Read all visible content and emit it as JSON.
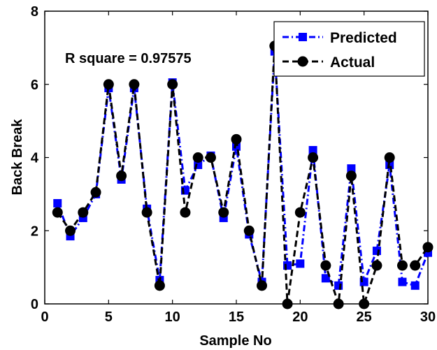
{
  "chart_data": {
    "type": "line",
    "xlabel": "Sample No",
    "ylabel": "Back Break",
    "xlim": [
      0,
      30
    ],
    "ylim": [
      0,
      8
    ],
    "xticks": [
      0,
      5,
      10,
      15,
      20,
      25,
      30
    ],
    "yticks": [
      0,
      2,
      4,
      6,
      8
    ],
    "grid": false,
    "legend_position": "top-right",
    "annotation": "R square = 0.97575",
    "x": [
      1,
      2,
      3,
      4,
      5,
      6,
      7,
      8,
      9,
      10,
      11,
      12,
      13,
      14,
      15,
      16,
      17,
      18,
      19,
      20,
      21,
      22,
      23,
      24,
      25,
      26,
      27,
      28,
      29,
      30
    ],
    "series": [
      {
        "name": "Predicted",
        "color": "#0000ff",
        "marker": "square",
        "line_style": "dash-dot",
        "values": [
          2.75,
          1.85,
          2.35,
          3.0,
          5.9,
          3.4,
          5.9,
          2.6,
          0.65,
          6.05,
          3.1,
          3.8,
          4.05,
          2.35,
          4.3,
          1.9,
          0.6,
          6.9,
          1.05,
          1.1,
          4.2,
          0.7,
          0.5,
          3.7,
          0.6,
          1.45,
          3.8,
          0.6,
          0.5,
          1.4
        ]
      },
      {
        "name": "Actual",
        "color": "#000000",
        "marker": "circle",
        "line_style": "dashed",
        "values": [
          2.5,
          2.0,
          2.5,
          3.05,
          6.0,
          3.5,
          6.0,
          2.5,
          0.5,
          6.0,
          2.5,
          4.0,
          4.0,
          2.5,
          4.5,
          2.0,
          0.5,
          7.05,
          0.0,
          2.5,
          4.0,
          1.05,
          0.0,
          3.5,
          0.0,
          1.05,
          4.0,
          1.05,
          1.05,
          1.55
        ]
      }
    ]
  }
}
